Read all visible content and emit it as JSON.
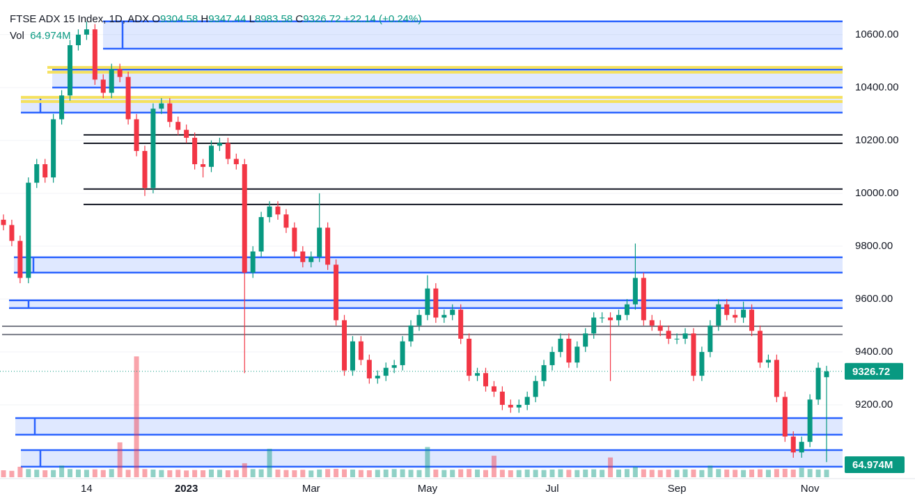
{
  "chart_data": {
    "type": "candlestick",
    "title": "FTSE ADX 15 Index, 1D, ADX",
    "ohlc_letters": [
      "O",
      "H",
      "L",
      "C"
    ],
    "change_label": "+22.14 (+0.24%)",
    "volume_title": "Vol",
    "last_volume_label": "64.974M",
    "up_color": "#089981",
    "down_color": "#f23645",
    "categories": [
      null,
      null,
      null,
      null,
      null,
      null,
      null,
      null,
      null,
      null,
      "14",
      null,
      null,
      null,
      null,
      null,
      null,
      null,
      null,
      null,
      null,
      null,
      "2023",
      null,
      null,
      null,
      null,
      null,
      null,
      null,
      null,
      null,
      null,
      null,
      null,
      null,
      null,
      "Mar",
      null,
      null,
      null,
      null,
      null,
      null,
      null,
      null,
      null,
      null,
      null,
      null,
      null,
      "May",
      null,
      null,
      null,
      null,
      null,
      null,
      null,
      null,
      null,
      null,
      null,
      null,
      null,
      null,
      "Jul",
      null,
      null,
      null,
      null,
      null,
      null,
      null,
      null,
      null,
      null,
      null,
      null,
      null,
      null,
      "Sep",
      null,
      null,
      null,
      null,
      null,
      null,
      null,
      null,
      null,
      null,
      null,
      null,
      null,
      null,
      null,
      "Nov",
      null,
      null
    ],
    "open": [
      9900,
      9880,
      9820,
      9680,
      10040,
      10110,
      10060,
      10280,
      10370,
      10560,
      10600,
      10620,
      10430,
      10380,
      10470,
      10440,
      10280,
      10160,
      10020,
      10320,
      10340,
      10270,
      10240,
      10210,
      10110,
      10100,
      10180,
      10190,
      10130,
      10110,
      9700,
      9780,
      9910,
      9950,
      9920,
      9870,
      9780,
      9740,
      9760,
      9870,
      9730,
      9520,
      9330,
      9440,
      9370,
      9300,
      9310,
      9340,
      9350,
      9440,
      9500,
      9540,
      9640,
      9530,
      9540,
      9560,
      9450,
      9310,
      9320,
      9270,
      9250,
      9200,
      9190,
      9200,
      9230,
      9290,
      9350,
      9400,
      9450,
      9360,
      9420,
      9470,
      9530,
      9530,
      9520,
      9540,
      9580,
      9680,
      9520,
      9500,
      9480,
      9450,
      9450,
      9470,
      9310,
      9400,
      9500,
      9580,
      9540,
      9530,
      9560,
      9480,
      9360,
      9370,
      9230,
      9080,
      9020,
      9060,
      9220,
      9304.58
    ],
    "high": [
      9920,
      9900,
      9840,
      10060,
      10130,
      10130,
      10300,
      10390,
      10580,
      10620,
      10650,
      10640,
      10450,
      10490,
      10490,
      10460,
      10300,
      10180,
      10340,
      10360,
      10360,
      10290,
      10260,
      10230,
      10130,
      10200,
      10210,
      10210,
      10150,
      10130,
      9800,
      9930,
      9970,
      9970,
      9940,
      9890,
      9800,
      9780,
      10000,
      9890,
      9750,
      9540,
      9460,
      9460,
      9390,
      9330,
      9360,
      9370,
      9460,
      9520,
      9560,
      9690,
      9660,
      9560,
      9580,
      9580,
      9470,
      9340,
      9340,
      9290,
      9270,
      9220,
      9220,
      9250,
      9310,
      9370,
      9420,
      9470,
      9470,
      9440,
      9490,
      9550,
      9550,
      9550,
      9560,
      9600,
      9810,
      9700,
      9540,
      9520,
      9500,
      9470,
      9490,
      9490,
      9420,
      9520,
      9600,
      9600,
      9560,
      9590,
      9580,
      9500,
      9390,
      9390,
      9250,
      9100,
      9080,
      9240,
      9360,
      9347.44
    ],
    "low": [
      9860,
      9800,
      9660,
      9660,
      10020,
      10040,
      10040,
      10260,
      10350,
      10540,
      10580,
      10410,
      10360,
      10360,
      10420,
      10260,
      10140,
      9990,
      10000,
      10300,
      10250,
      10220,
      10190,
      10090,
      10060,
      10080,
      10160,
      10110,
      10090,
      9320,
      9680,
      9760,
      9890,
      9900,
      9850,
      9760,
      9720,
      9720,
      9740,
      9710,
      9500,
      9310,
      9310,
      9350,
      9280,
      9280,
      9290,
      9320,
      9330,
      9420,
      9480,
      9520,
      9510,
      9510,
      9520,
      9430,
      9290,
      9290,
      9250,
      9230,
      9180,
      9170,
      9170,
      9180,
      9210,
      9270,
      9330,
      9380,
      9340,
      9340,
      9400,
      9450,
      9510,
      9290,
      9500,
      9520,
      9560,
      9500,
      9480,
      9460,
      9430,
      9430,
      9430,
      9290,
      9290,
      9380,
      9480,
      9520,
      9510,
      9510,
      9460,
      9340,
      9340,
      9210,
      9060,
      9000,
      9000,
      9040,
      9200,
      8983.58
    ],
    "close": [
      9880,
      9820,
      9680,
      10040,
      10110,
      10060,
      10280,
      10370,
      10560,
      10600,
      10620,
      10430,
      10380,
      10470,
      10440,
      10280,
      10160,
      10020,
      10320,
      10340,
      10270,
      10240,
      10210,
      10110,
      10100,
      10180,
      10190,
      10130,
      10110,
      9700,
      9780,
      9910,
      9950,
      9920,
      9870,
      9780,
      9740,
      9760,
      9870,
      9730,
      9520,
      9330,
      9440,
      9370,
      9300,
      9310,
      9340,
      9350,
      9440,
      9500,
      9540,
      9640,
      9530,
      9540,
      9560,
      9450,
      9310,
      9320,
      9270,
      9250,
      9200,
      9190,
      9200,
      9230,
      9290,
      9350,
      9400,
      9450,
      9360,
      9420,
      9470,
      9530,
      9530,
      9520,
      9540,
      9580,
      9680,
      9520,
      9500,
      9480,
      9450,
      9450,
      9470,
      9310,
      9400,
      9500,
      9580,
      9540,
      9530,
      9560,
      9480,
      9360,
      9370,
      9230,
      9080,
      9020,
      9060,
      9220,
      9340,
      9326.72
    ],
    "volume": [
      60,
      55,
      90,
      70,
      65,
      60,
      62,
      100,
      70,
      66,
      64,
      68,
      62,
      70,
      300,
      64,
      1040,
      70,
      66,
      62,
      60,
      64,
      58,
      62,
      60,
      66,
      64,
      60,
      62,
      120,
      70,
      68,
      245,
      66,
      62,
      60,
      64,
      58,
      66,
      70,
      72,
      68,
      66,
      62,
      60,
      64,
      66,
      70,
      68,
      64,
      62,
      260,
      66,
      62,
      64,
      68,
      70,
      66,
      62,
      185,
      64,
      60,
      62,
      66,
      64,
      62,
      66,
      68,
      64,
      62,
      66,
      68,
      64,
      170,
      66,
      70,
      90,
      68,
      64,
      62,
      66,
      64,
      68,
      66,
      62,
      100,
      70,
      66,
      64,
      62,
      66,
      68,
      64,
      70,
      72,
      66,
      80,
      70,
      66,
      64.974
    ],
    "ylim": [
      8921,
      10731
    ],
    "yticks": [
      {
        "value": 9200,
        "label": "9200.00"
      },
      {
        "value": 9400,
        "label": "9400.00"
      },
      {
        "value": 9600,
        "label": "9600.00"
      },
      {
        "value": 9800,
        "label": "9800.00"
      },
      {
        "value": 10000,
        "label": "10000.00"
      },
      {
        "value": 10200,
        "label": "10200.00"
      },
      {
        "value": 10400,
        "label": "10400.00"
      },
      {
        "value": 10600,
        "label": "10600.00"
      }
    ],
    "grid": true,
    "zones": [
      {
        "low": 10547,
        "high": 10650
      },
      {
        "low": 10400,
        "high": 10468
      },
      {
        "low": 10305,
        "high": 10363
      },
      {
        "low": 9700,
        "high": 9758
      },
      {
        "low": 9566,
        "high": 9595
      },
      {
        "low": 9087,
        "high": 9150
      },
      {
        "low": 8966,
        "high": 9029
      }
    ],
    "yellow_lines": [
      10476,
      10458,
      10363,
      10347
    ],
    "black_lines": [
      10221,
      10189,
      10016,
      9958
    ],
    "gray_lines": [
      9497,
      9466
    ]
  }
}
